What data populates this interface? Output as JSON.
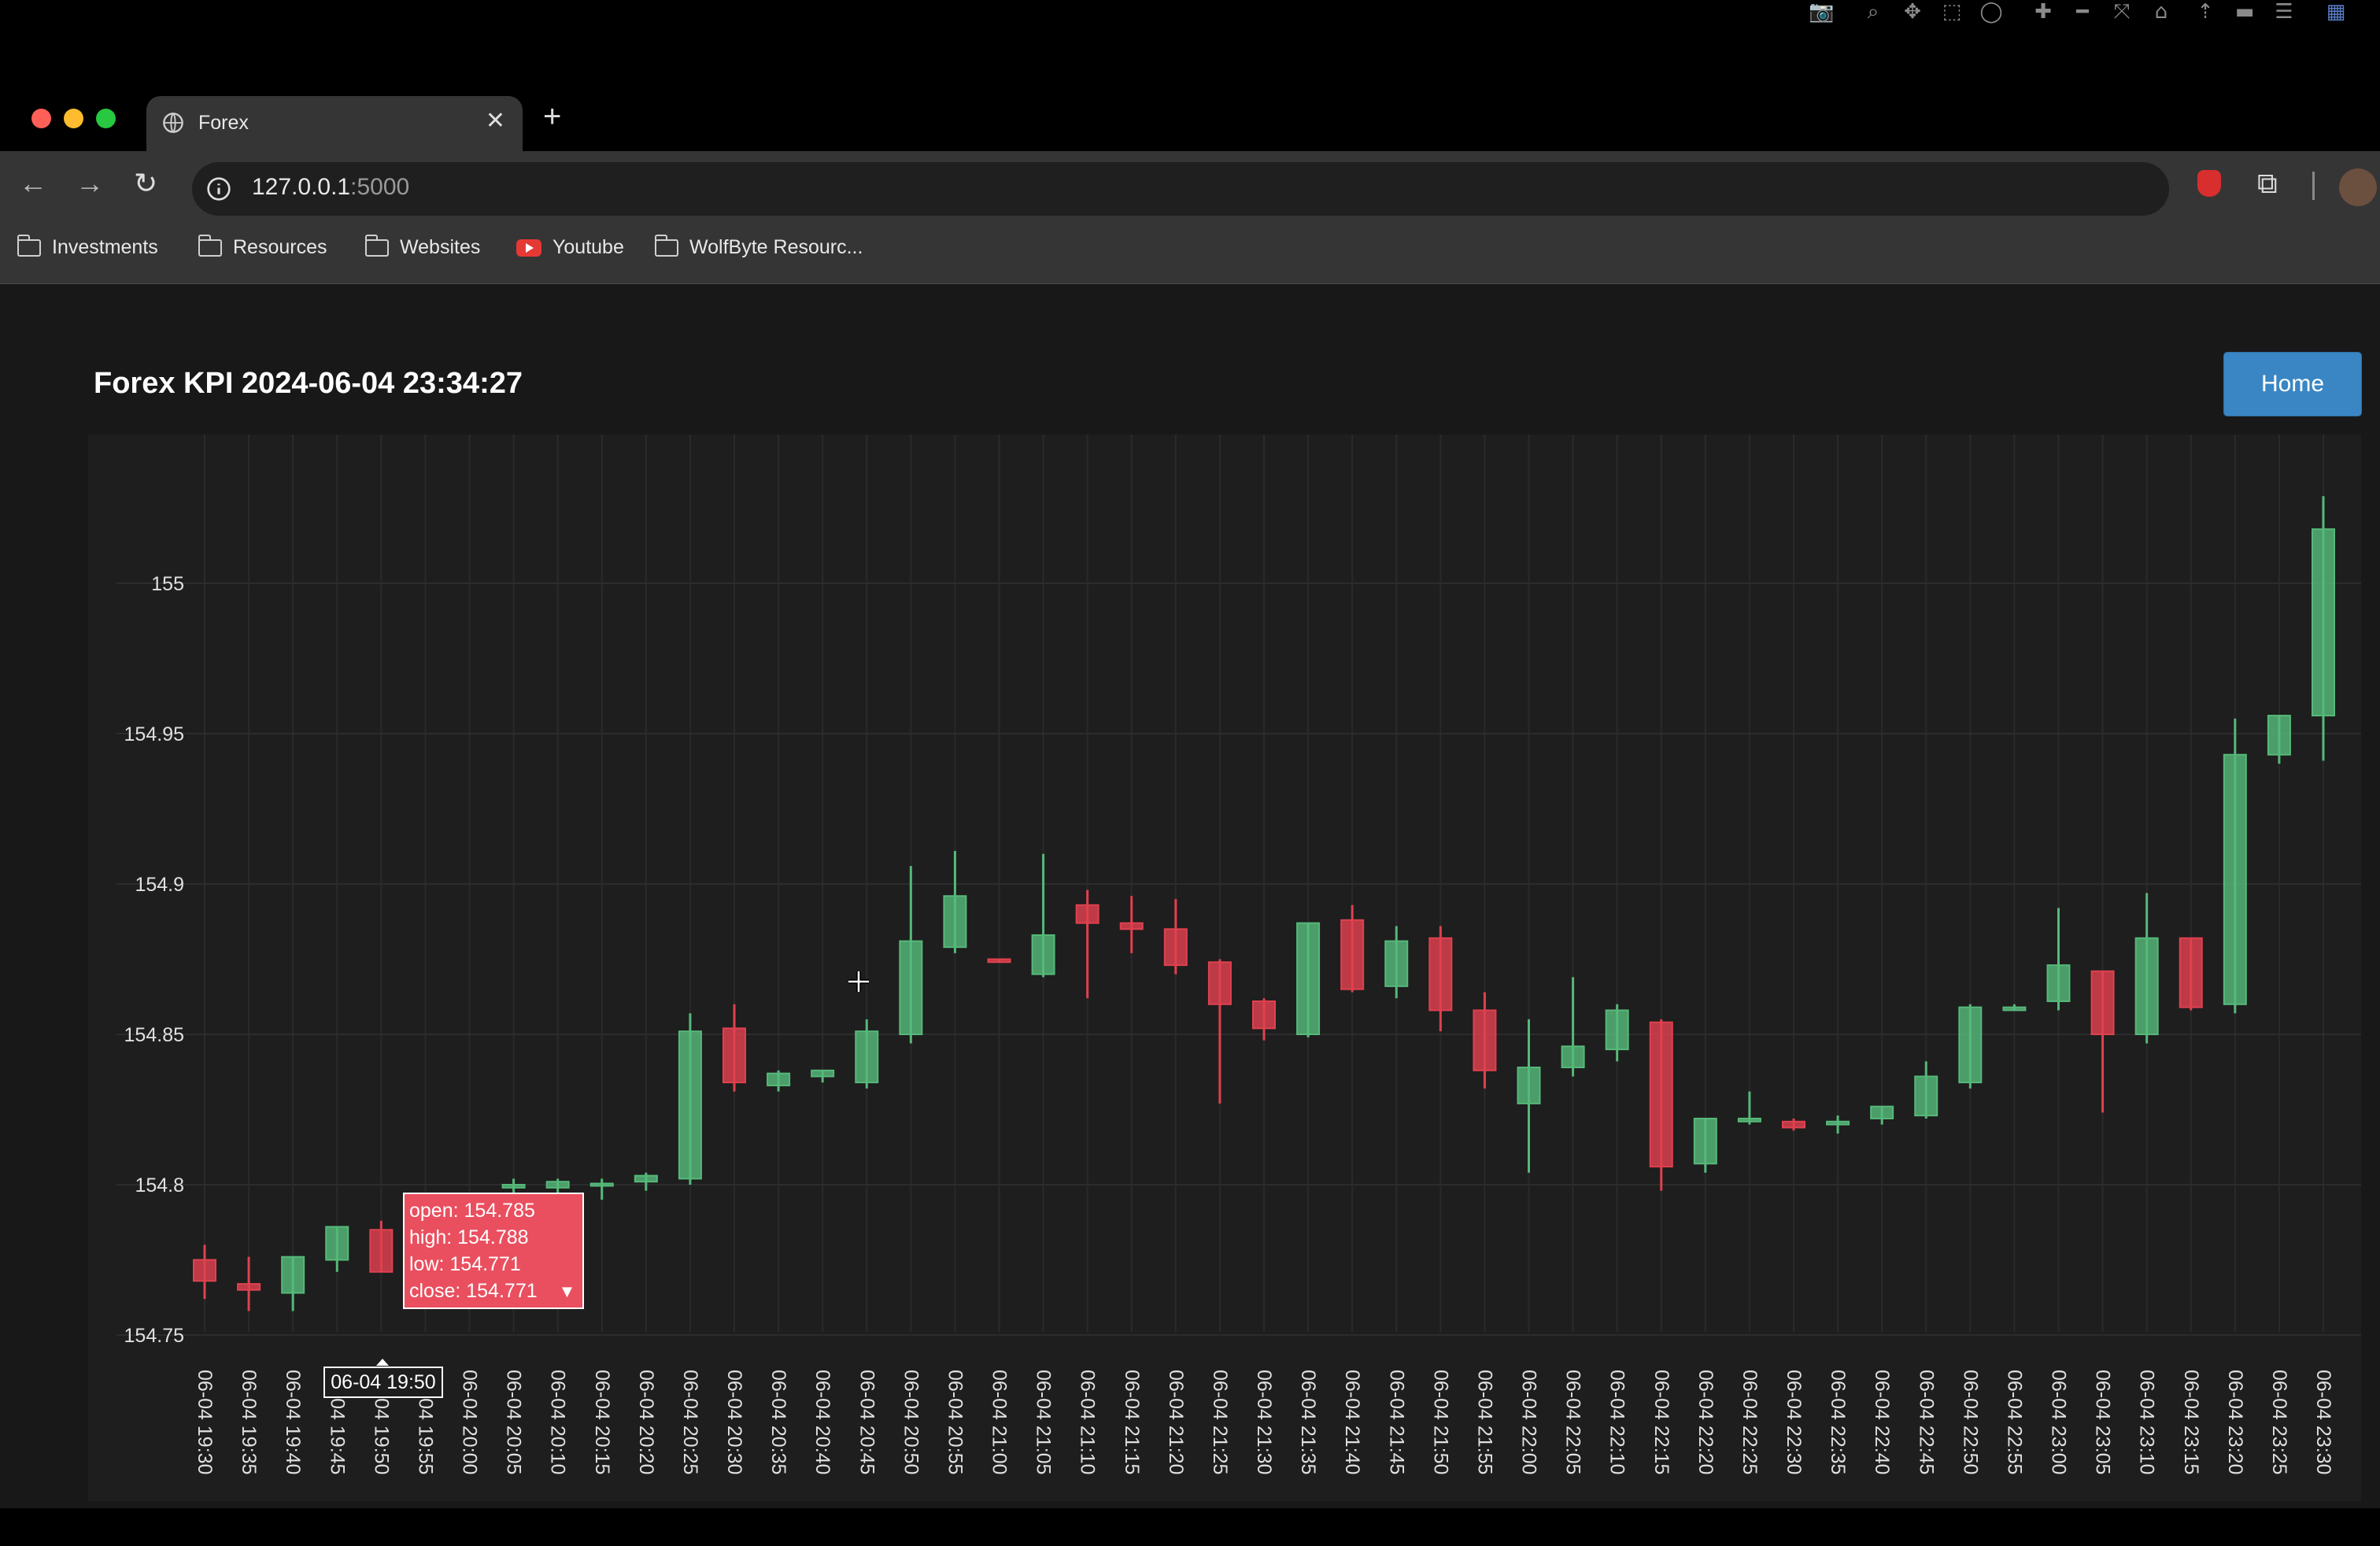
{
  "browser": {
    "tab_title": "Forex",
    "tab_close": "✕",
    "new_tab": "+",
    "url_host": "127.0.0.1",
    "url_port": ":5000",
    "bookmarks": [
      "Investments",
      "Resources",
      "Websites",
      "Youtube",
      "WolfByte Resourc..."
    ]
  },
  "page": {
    "title": "Forex KPI 2024-06-04 23:34:27",
    "home_button": "Home"
  },
  "modebar": {
    "icons": [
      "camera-icon",
      "zoom-icon",
      "pan-icon",
      "box-select-icon",
      "lasso-icon",
      "zoom-in-icon",
      "zoom-out-icon",
      "autoscale-icon",
      "reset-axes-icon",
      "spike-lines-icon",
      "hover-closest-icon",
      "hover-compare-icon",
      "plotly-logo-icon"
    ]
  },
  "tooltip": {
    "lines": [
      "open: 154.785",
      "high: 154.788",
      "low: 154.771",
      "close: 154.771"
    ],
    "arrow": "▼",
    "xlabel": "06-04 19:50"
  },
  "colors": {
    "increasing": "#56b97a",
    "decreasing": "#e0414f",
    "accent": "#3a86c4"
  },
  "chart_data": {
    "type": "candlestick",
    "title": "",
    "xlabel": "",
    "ylabel": "",
    "ylim": [
      154.745,
      155.03
    ],
    "yticks": [
      154.75,
      154.8,
      154.85,
      154.9,
      154.95,
      155
    ],
    "ytick_labels": [
      "154.75",
      "154.8",
      "154.85",
      "154.9",
      "154.95",
      "155"
    ],
    "categories": [
      "06-04 19:30",
      "06-04 19:35",
      "06-04 19:40",
      "06-04 19:45",
      "06-04 19:50",
      "06-04 19:55",
      "06-04 20:00",
      "06-04 20:05",
      "06-04 20:10",
      "06-04 20:15",
      "06-04 20:20",
      "06-04 20:25",
      "06-04 20:30",
      "06-04 20:35",
      "06-04 20:40",
      "06-04 20:45",
      "06-04 20:50",
      "06-04 20:55",
      "06-04 21:00",
      "06-04 21:05",
      "06-04 21:10",
      "06-04 21:15",
      "06-04 21:20",
      "06-04 21:25",
      "06-04 21:30",
      "06-04 21:35",
      "06-04 21:40",
      "06-04 21:45",
      "06-04 21:50",
      "06-04 21:55",
      "06-04 22:00",
      "06-04 22:05",
      "06-04 22:10",
      "06-04 22:15",
      "06-04 22:20",
      "06-04 22:25",
      "06-04 22:30",
      "06-04 22:35",
      "06-04 22:40",
      "06-04 22:45",
      "06-04 22:50",
      "06-04 22:55",
      "06-04 23:00",
      "06-04 23:05",
      "06-04 23:10",
      "06-04 23:15",
      "06-04 23:20",
      "06-04 23:25",
      "06-04 23:30"
    ],
    "open": [
      154.775,
      154.767,
      154.764,
      154.775,
      154.785,
      null,
      null,
      154.799,
      154.799,
      154.8,
      154.801,
      154.802,
      154.852,
      154.833,
      154.836,
      154.834,
      154.85,
      154.879,
      154.875,
      154.87,
      154.893,
      154.887,
      154.885,
      154.874,
      154.861,
      154.85,
      154.888,
      154.866,
      154.882,
      154.858,
      154.827,
      154.839,
      154.845,
      154.854,
      154.807,
      154.821,
      154.821,
      154.82,
      154.822,
      154.823,
      154.834,
      154.858,
      154.861,
      154.871,
      154.85,
      154.882,
      154.86,
      154.943,
      154.956
    ],
    "high": [
      154.78,
      154.776,
      154.776,
      154.786,
      154.788,
      null,
      null,
      154.802,
      154.802,
      154.802,
      154.804,
      154.857,
      154.86,
      154.838,
      154.838,
      154.855,
      154.906,
      154.911,
      154.875,
      154.91,
      154.898,
      154.896,
      154.895,
      154.875,
      154.862,
      154.887,
      154.893,
      154.886,
      154.886,
      154.864,
      154.855,
      154.869,
      154.86,
      154.855,
      154.822,
      154.831,
      154.822,
      154.823,
      154.826,
      154.841,
      154.86,
      154.86,
      154.892,
      154.871,
      154.897,
      154.882,
      154.955,
      154.956,
      155.029
    ],
    "low": [
      154.762,
      154.758,
      154.758,
      154.771,
      154.771,
      null,
      null,
      154.797,
      154.797,
      154.795,
      154.798,
      154.8,
      154.831,
      154.831,
      154.834,
      154.832,
      154.847,
      154.877,
      154.874,
      154.869,
      154.862,
      154.877,
      154.87,
      154.827,
      154.848,
      154.849,
      154.864,
      154.862,
      154.851,
      154.832,
      154.804,
      154.836,
      154.841,
      154.798,
      154.804,
      154.82,
      154.818,
      154.817,
      154.82,
      154.822,
      154.832,
      154.858,
      154.858,
      154.824,
      154.847,
      154.858,
      154.857,
      154.94,
      154.941
    ],
    "close": [
      154.768,
      154.765,
      154.776,
      154.786,
      154.771,
      null,
      null,
      154.8,
      154.801,
      154.8,
      154.803,
      154.851,
      154.834,
      154.837,
      154.838,
      154.851,
      154.881,
      154.896,
      154.874,
      154.883,
      154.887,
      154.885,
      154.873,
      154.86,
      154.852,
      154.887,
      154.865,
      154.881,
      154.858,
      154.838,
      154.839,
      154.846,
      154.858,
      154.806,
      154.822,
      154.822,
      154.819,
      154.821,
      154.826,
      154.836,
      154.859,
      154.859,
      154.873,
      154.85,
      154.882,
      154.859,
      154.943,
      154.956,
      155.018
    ]
  }
}
